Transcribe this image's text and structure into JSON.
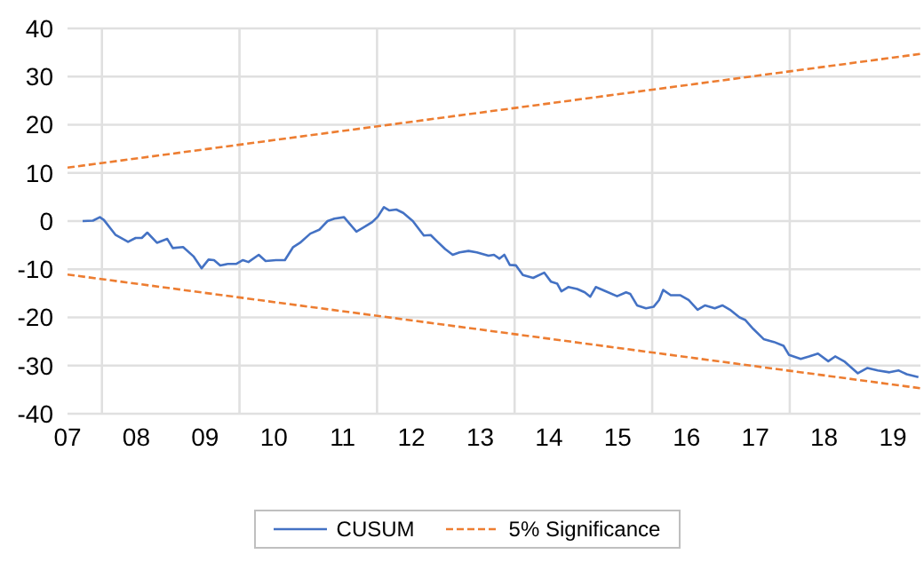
{
  "chart_data": {
    "type": "line",
    "xlim": [
      7,
      19.4
    ],
    "xticks": [
      {
        "value": 7,
        "label": "07"
      },
      {
        "value": 7.5,
        "label": null
      },
      {
        "value": 8,
        "label": "08"
      },
      {
        "value": 9,
        "label": "09"
      },
      {
        "value": 9.5,
        "label": null
      },
      10,
      11,
      {
        "value": 11.5,
        "label": null
      },
      12,
      13,
      {
        "value": 13.5,
        "label": null
      },
      14,
      15,
      {
        "value": 15.5,
        "label": null
      },
      16,
      17,
      {
        "value": 17.5,
        "label": null
      },
      18,
      19
    ],
    "ylim": [
      -40,
      40
    ],
    "yticks": [
      -40,
      -30,
      -20,
      -10,
      0,
      10,
      20,
      30,
      40
    ],
    "grid": true,
    "legend": "bottom",
    "marker": "none",
    "series": [
      {
        "name": "CUSUM",
        "color": "#4472c4",
        "line_style": "solid",
        "x": [
          7.22,
          7.37,
          7.47,
          7.53,
          7.7,
          7.88,
          7.99,
          8.08,
          8.16,
          8.3,
          8.45,
          8.53,
          8.68,
          8.83,
          8.95,
          9.05,
          9.13,
          9.22,
          9.33,
          9.45,
          9.55,
          9.63,
          9.78,
          9.88,
          10.03,
          10.16,
          10.28,
          10.38,
          10.53,
          10.66,
          10.78,
          10.88,
          11.02,
          11.2,
          11.33,
          11.43,
          11.51,
          11.6,
          11.68,
          11.78,
          11.88,
          12.02,
          12.18,
          12.28,
          12.38,
          12.49,
          12.6,
          12.7,
          12.83,
          12.95,
          13.12,
          13.2,
          13.28,
          13.35,
          13.43,
          13.52,
          13.62,
          13.77,
          13.93,
          14.03,
          14.12,
          14.18,
          14.28,
          14.41,
          14.52,
          14.6,
          14.68,
          14.83,
          14.99,
          15.12,
          15.18,
          15.28,
          15.41,
          15.52,
          15.6,
          15.66,
          15.77,
          15.91,
          16.03,
          16.16,
          16.27,
          16.41,
          16.52,
          16.63,
          16.77,
          16.85,
          16.97,
          17.12,
          17.27,
          17.41,
          17.49,
          17.66,
          17.78,
          17.91,
          18.06,
          18.16,
          18.3,
          18.49,
          18.63,
          18.78,
          18.95,
          19.08,
          19.2,
          19.37
        ],
        "values": [
          0,
          0.1,
          0.8,
          0.2,
          -2.9,
          -4.3,
          -3.5,
          -3.5,
          -2.4,
          -4.5,
          -3.7,
          -5.6,
          -5.4,
          -7.3,
          -9.8,
          -8,
          -8.1,
          -9.2,
          -8.9,
          -8.9,
          -8.1,
          -8.5,
          -7,
          -8.3,
          -8.1,
          -8.1,
          -5.4,
          -4.5,
          -2.6,
          -1.8,
          0,
          0.5,
          0.8,
          -2.2,
          -1.1,
          -0.2,
          0.9,
          2.9,
          2.2,
          2.4,
          1.7,
          0,
          -3,
          -2.9,
          -4.3,
          -5.8,
          -7,
          -6.5,
          -6.2,
          -6.5,
          -7.2,
          -7,
          -7.8,
          -7,
          -9.1,
          -9.2,
          -11.2,
          -11.8,
          -10.7,
          -12.6,
          -13,
          -14.6,
          -13.7,
          -14.1,
          -14.8,
          -15.7,
          -13.7,
          -14.6,
          -15.6,
          -14.8,
          -15.1,
          -17.5,
          -18.1,
          -17.8,
          -16.4,
          -14.3,
          -15.4,
          -15.4,
          -16.4,
          -18.4,
          -17.5,
          -18.1,
          -17.5,
          -18.4,
          -20,
          -20.5,
          -22.4,
          -24.5,
          -25.1,
          -25.9,
          -27.8,
          -28.6,
          -28.1,
          -27.5,
          -29.1,
          -28.1,
          -29.2,
          -31.6,
          -30.5,
          -31,
          -31.4,
          -31,
          -31.8,
          -32.4
        ]
      },
      {
        "name": "5% Significance",
        "color": "#ed7d31",
        "line_style": "dashed",
        "x": [
          7,
          19.4
        ],
        "values": [
          11.1,
          34.7
        ]
      },
      {
        "color": "#ed7d31",
        "line_style": "dashed",
        "x": [
          7,
          19.4
        ],
        "values": [
          -11.1,
          -34.7
        ]
      }
    ]
  }
}
